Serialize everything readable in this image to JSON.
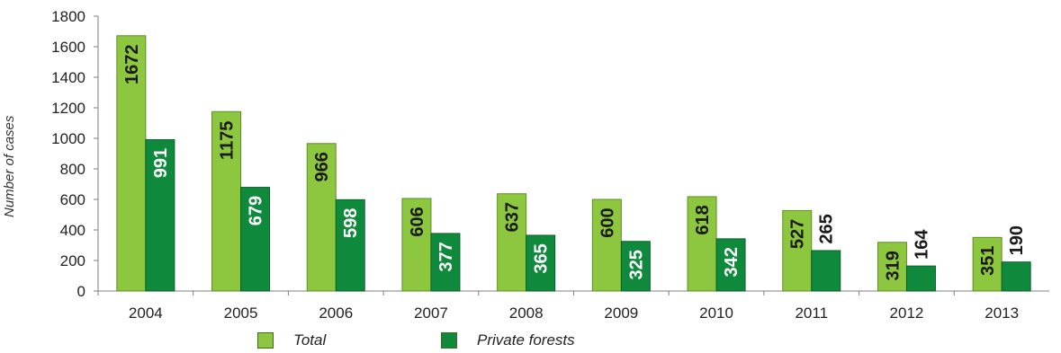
{
  "title": "",
  "chart_data": {
    "type": "bar",
    "categories": [
      "2004",
      "2005",
      "2006",
      "2007",
      "2008",
      "2009",
      "2010",
      "2011",
      "2012",
      "2013"
    ],
    "series": [
      {
        "name": "Total",
        "color": "#8dc63f",
        "values": [
          1672,
          1175,
          966,
          606,
          637,
          600,
          618,
          527,
          319,
          351
        ]
      },
      {
        "name": "Private forests",
        "color": "#0f8a3c",
        "values": [
          991,
          679,
          598,
          377,
          365,
          325,
          342,
          265,
          164,
          190
        ]
      }
    ],
    "ylabel": "Number of cases",
    "xlabel": "",
    "ylim": [
      0,
      1800
    ],
    "yticks": [
      0,
      200,
      400,
      600,
      800,
      1000,
      1200,
      1400,
      1600,
      1800
    ],
    "grid": false,
    "legend": "bottom"
  }
}
